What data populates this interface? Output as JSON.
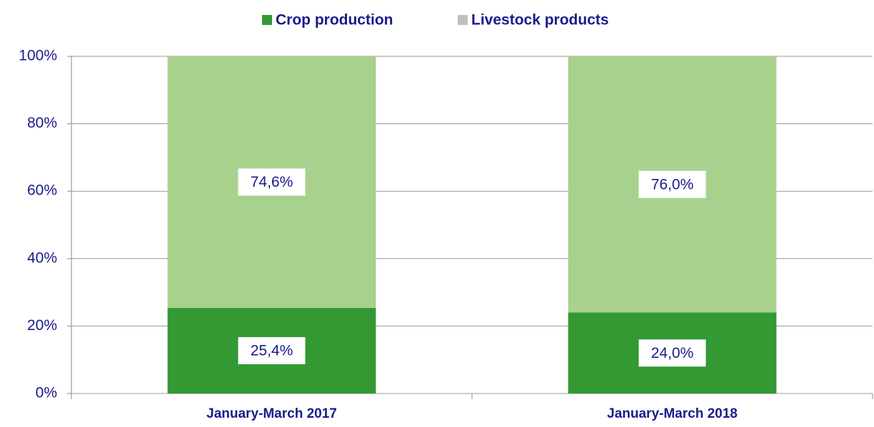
{
  "chart_data": {
    "type": "stacked_bar",
    "categories": [
      "January-March 2017",
      "January-March 2018"
    ],
    "series": [
      {
        "name": "Crop production",
        "color": "#339933",
        "legend_color": "#339933",
        "values": [
          25.4,
          24.0
        ],
        "value_labels": [
          "25,4%",
          "24,0%"
        ]
      },
      {
        "name": "Livestock products",
        "color": "#a9d18e",
        "legend_color": "#c0c0c0",
        "values": [
          74.6,
          76.0
        ],
        "value_labels": [
          "74,6%",
          "76,0%"
        ]
      }
    ],
    "ylim": [
      0,
      100
    ],
    "yticks": [
      {
        "value": 0,
        "label": "0%"
      },
      {
        "value": 20,
        "label": "20%"
      },
      {
        "value": 40,
        "label": "40%"
      },
      {
        "value": 60,
        "label": "60%"
      },
      {
        "value": 80,
        "label": "80%"
      },
      {
        "value": 100,
        "label": "100%"
      }
    ],
    "grid": true,
    "legend": "top"
  }
}
